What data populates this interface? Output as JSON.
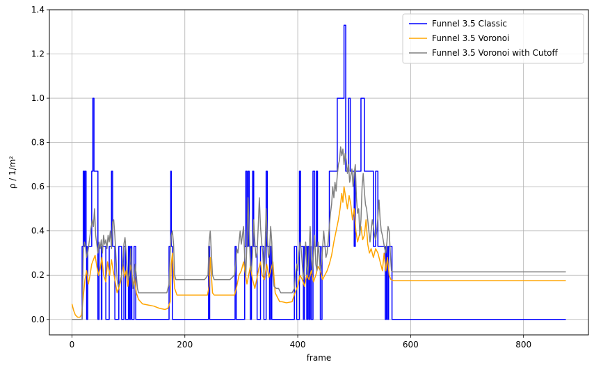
{
  "chart_data": {
    "type": "line",
    "title": "",
    "xlabel": "frame",
    "ylabel": "ρ / 1/m²",
    "xlim": [
      -40,
      915
    ],
    "ylim": [
      -0.07,
      1.4
    ],
    "x_ticks": [
      0,
      200,
      400,
      600,
      800
    ],
    "y_ticks": [
      0.0,
      0.2,
      0.4,
      0.6,
      0.8,
      1.0,
      1.2,
      1.4
    ],
    "grid": true,
    "legend_position": "top-right",
    "series": [
      {
        "name": "Funnel 3.5 Classic",
        "color": "#0000ff",
        "step": true,
        "x": [
          0,
          18,
          20,
          22,
          23,
          25,
          26,
          28,
          35,
          37,
          39,
          41,
          46,
          48,
          52,
          53,
          60,
          66,
          70,
          72,
          76,
          78,
          83,
          88,
          92,
          95,
          100,
          102,
          104,
          106,
          110,
          113,
          116,
          118,
          172,
          175,
          176,
          178,
          180,
          242,
          244,
          247,
          249,
          289,
          291,
          306,
          308,
          310,
          312,
          314,
          316,
          318,
          320,
          322,
          328,
          334,
          340,
          344,
          346,
          350,
          352,
          354,
          358,
          360,
          366,
          372,
          374,
          380,
          382,
          386,
          394,
          398,
          403,
          405,
          410,
          412,
          416,
          418,
          420,
          422,
          424,
          427,
          430,
          433,
          435,
          440,
          443,
          445,
          456,
          460,
          470,
          472,
          475,
          482,
          485,
          490,
          493,
          500,
          502,
          506,
          512,
          518,
          522,
          525,
          534,
          538,
          542,
          544,
          546,
          550,
          555,
          557,
          559,
          561,
          564,
          567,
          875
        ],
        "y": [
          0.0,
          0.33,
          0.67,
          0.33,
          0.67,
          0.33,
          0.0,
          0.33,
          0.67,
          1.0,
          0.67,
          0.67,
          0.0,
          0.33,
          0.0,
          0.33,
          0.0,
          0.33,
          0.67,
          0.33,
          0.0,
          0.0,
          0.33,
          0.0,
          0.33,
          0.0,
          0.33,
          0.0,
          0.33,
          0.0,
          0.33,
          0.0,
          0.0,
          0.0,
          0.33,
          0.67,
          0.33,
          0.0,
          0.0,
          0.33,
          0.0,
          0.0,
          0.0,
          0.33,
          0.0,
          0.33,
          0.67,
          0.33,
          0.67,
          0.33,
          0.0,
          0.33,
          0.67,
          0.33,
          0.0,
          0.33,
          0.0,
          0.67,
          0.33,
          0.0,
          0.33,
          0.0,
          0.0,
          0.0,
          0.0,
          0.0,
          0.0,
          0.0,
          0.0,
          0.0,
          0.33,
          0.0,
          0.67,
          0.33,
          0.0,
          0.33,
          0.0,
          0.33,
          0.0,
          0.33,
          0.0,
          0.67,
          0.33,
          0.67,
          0.33,
          0.0,
          0.33,
          0.33,
          0.67,
          0.67,
          1.0,
          1.0,
          1.0,
          1.33,
          0.67,
          1.0,
          0.67,
          0.33,
          0.67,
          0.67,
          1.0,
          0.67,
          0.67,
          0.67,
          0.33,
          0.67,
          0.33,
          0.33,
          0.33,
          0.33,
          0.0,
          0.33,
          0.0,
          0.33,
          0.33,
          0.0,
          0.0
        ]
      },
      {
        "name": "Funnel 3.5 Voronoi",
        "color": "#ffa500",
        "step": false,
        "x": [
          0,
          3,
          6,
          10,
          14,
          17,
          20,
          23,
          26,
          29,
          32,
          35,
          38,
          41,
          44,
          47,
          50,
          53,
          56,
          60,
          63,
          67,
          70,
          73,
          76,
          80,
          84,
          87,
          90,
          93,
          96,
          99,
          102,
          105,
          108,
          111,
          114,
          118,
          125,
          135,
          145,
          155,
          165,
          170,
          174,
          176,
          178,
          180,
          182,
          186,
          195,
          205,
          215,
          230,
          240,
          243,
          245,
          247,
          249,
          252,
          260,
          275,
          288,
          292,
          296,
          300,
          304,
          307,
          310,
          313,
          316,
          320,
          324,
          328,
          331,
          334,
          337,
          341,
          345,
          349,
          352,
          356,
          360,
          364,
          368,
          372,
          380,
          390,
          395,
          400,
          404,
          408,
          412,
          416,
          420,
          424,
          428,
          432,
          436,
          440,
          444,
          448,
          452,
          456,
          460,
          464,
          468,
          472,
          475,
          478,
          480,
          482,
          485,
          488,
          491,
          494,
          497,
          500,
          503,
          506,
          509,
          512,
          515,
          518,
          521,
          524,
          527,
          530,
          534,
          538,
          542,
          546,
          550,
          553,
          556,
          559,
          562,
          565,
          570,
          580,
          600,
          700,
          875
        ],
        "y": [
          0.07,
          0.04,
          0.02,
          0.01,
          0.01,
          0.02,
          0.1,
          0.18,
          0.22,
          0.16,
          0.2,
          0.25,
          0.27,
          0.29,
          0.24,
          0.2,
          0.23,
          0.28,
          0.2,
          0.17,
          0.26,
          0.2,
          0.27,
          0.22,
          0.18,
          0.12,
          0.15,
          0.18,
          0.25,
          0.19,
          0.22,
          0.15,
          0.21,
          0.25,
          0.15,
          0.19,
          0.12,
          0.09,
          0.07,
          0.065,
          0.06,
          0.05,
          0.045,
          0.05,
          0.08,
          0.25,
          0.3,
          0.2,
          0.14,
          0.11,
          0.11,
          0.11,
          0.11,
          0.11,
          0.11,
          0.15,
          0.28,
          0.2,
          0.12,
          0.11,
          0.11,
          0.11,
          0.11,
          0.15,
          0.2,
          0.22,
          0.26,
          0.21,
          0.16,
          0.2,
          0.24,
          0.18,
          0.14,
          0.19,
          0.23,
          0.26,
          0.2,
          0.18,
          0.25,
          0.19,
          0.22,
          0.26,
          0.12,
          0.1,
          0.08,
          0.08,
          0.075,
          0.08,
          0.12,
          0.15,
          0.2,
          0.18,
          0.15,
          0.2,
          0.18,
          0.22,
          0.17,
          0.2,
          0.24,
          0.22,
          0.18,
          0.2,
          0.22,
          0.25,
          0.29,
          0.35,
          0.4,
          0.45,
          0.5,
          0.57,
          0.53,
          0.6,
          0.55,
          0.5,
          0.56,
          0.52,
          0.45,
          0.5,
          0.4,
          0.35,
          0.38,
          0.42,
          0.36,
          0.38,
          0.45,
          0.34,
          0.3,
          0.32,
          0.28,
          0.32,
          0.3,
          0.26,
          0.22,
          0.3,
          0.22,
          0.28,
          0.2,
          0.18,
          0.175,
          0.175,
          0.175,
          0.175,
          0.175
        ]
      },
      {
        "name": "Funnel 3.5 Voronoi with Cutoff",
        "color": "#808080",
        "step": false,
        "x": [
          0,
          10,
          18,
          20,
          22,
          24,
          26,
          28,
          30,
          33,
          36,
          38,
          40,
          42,
          44,
          46,
          48,
          50,
          52,
          54,
          56,
          58,
          60,
          62,
          64,
          66,
          68,
          70,
          72,
          74,
          76,
          78,
          80,
          82,
          84,
          86,
          88,
          90,
          92,
          94,
          96,
          98,
          100,
          102,
          104,
          106,
          108,
          110,
          112,
          114,
          116,
          118,
          130,
          150,
          168,
          172,
          174,
          176,
          178,
          180,
          182,
          184,
          190,
          210,
          235,
          241,
          243,
          245,
          247,
          249,
          252,
          260,
          280,
          288,
          290,
          292,
          294,
          296,
          298,
          300,
          302,
          304,
          306,
          308,
          310,
          312,
          314,
          316,
          318,
          320,
          322,
          324,
          326,
          328,
          330,
          332,
          334,
          336,
          338,
          340,
          342,
          344,
          346,
          348,
          350,
          352,
          354,
          356,
          358,
          362,
          366,
          370,
          380,
          390,
          394,
          396,
          398,
          400,
          402,
          404,
          406,
          408,
          410,
          412,
          414,
          416,
          418,
          420,
          422,
          424,
          426,
          428,
          430,
          432,
          434,
          436,
          438,
          440,
          442,
          444,
          446,
          448,
          450,
          452,
          454,
          456,
          458,
          460,
          462,
          464,
          466,
          468,
          470,
          472,
          474,
          476,
          478,
          480,
          482,
          484,
          486,
          488,
          490,
          492,
          494,
          496,
          498,
          500,
          502,
          504,
          506,
          508,
          510,
          512,
          514,
          516,
          518,
          520,
          522,
          524,
          526,
          528,
          530,
          532,
          534,
          536,
          538,
          540,
          542,
          544,
          546,
          548,
          550,
          552,
          554,
          556,
          558,
          560,
          562,
          564,
          566,
          568,
          575,
          875
        ],
        "y": [
          0.0,
          0.0,
          0.0,
          0.3,
          0.35,
          0.33,
          0.28,
          0.3,
          0.34,
          0.4,
          0.45,
          0.42,
          0.5,
          0.38,
          0.34,
          0.3,
          0.35,
          0.32,
          0.36,
          0.3,
          0.38,
          0.34,
          0.36,
          0.32,
          0.38,
          0.35,
          0.4,
          0.32,
          0.44,
          0.45,
          0.38,
          0.28,
          0.18,
          0.15,
          0.16,
          0.18,
          0.2,
          0.25,
          0.34,
          0.37,
          0.3,
          0.22,
          0.18,
          0.2,
          0.32,
          0.2,
          0.14,
          0.16,
          0.25,
          0.2,
          0.14,
          0.12,
          0.12,
          0.12,
          0.12,
          0.16,
          0.3,
          0.38,
          0.4,
          0.34,
          0.2,
          0.18,
          0.18,
          0.18,
          0.18,
          0.2,
          0.35,
          0.4,
          0.3,
          0.2,
          0.18,
          0.18,
          0.18,
          0.2,
          0.25,
          0.32,
          0.3,
          0.35,
          0.4,
          0.34,
          0.38,
          0.42,
          0.28,
          0.2,
          0.35,
          0.55,
          0.4,
          0.25,
          0.22,
          0.3,
          0.45,
          0.35,
          0.28,
          0.3,
          0.42,
          0.55,
          0.42,
          0.35,
          0.3,
          0.2,
          0.3,
          0.5,
          0.38,
          0.28,
          0.3,
          0.42,
          0.35,
          0.2,
          0.15,
          0.14,
          0.14,
          0.12,
          0.12,
          0.12,
          0.14,
          0.2,
          0.25,
          0.22,
          0.3,
          0.35,
          0.32,
          0.25,
          0.18,
          0.22,
          0.35,
          0.25,
          0.2,
          0.3,
          0.42,
          0.28,
          0.22,
          0.3,
          0.38,
          0.25,
          0.22,
          0.35,
          0.28,
          0.22,
          0.25,
          0.32,
          0.4,
          0.34,
          0.28,
          0.3,
          0.36,
          0.42,
          0.48,
          0.52,
          0.6,
          0.55,
          0.62,
          0.58,
          0.65,
          0.7,
          0.72,
          0.78,
          0.74,
          0.77,
          0.7,
          0.75,
          0.72,
          0.66,
          0.7,
          0.62,
          0.65,
          0.68,
          0.6,
          0.66,
          0.7,
          0.55,
          0.48,
          0.5,
          0.38,
          0.45,
          0.6,
          0.66,
          0.58,
          0.52,
          0.5,
          0.45,
          0.4,
          0.35,
          0.4,
          0.45,
          0.42,
          0.38,
          0.36,
          0.4,
          0.46,
          0.54,
          0.45,
          0.4,
          0.38,
          0.35,
          0.32,
          0.3,
          0.35,
          0.42,
          0.4,
          0.3,
          0.22,
          0.215,
          0.215,
          0.215
        ]
      }
    ]
  }
}
